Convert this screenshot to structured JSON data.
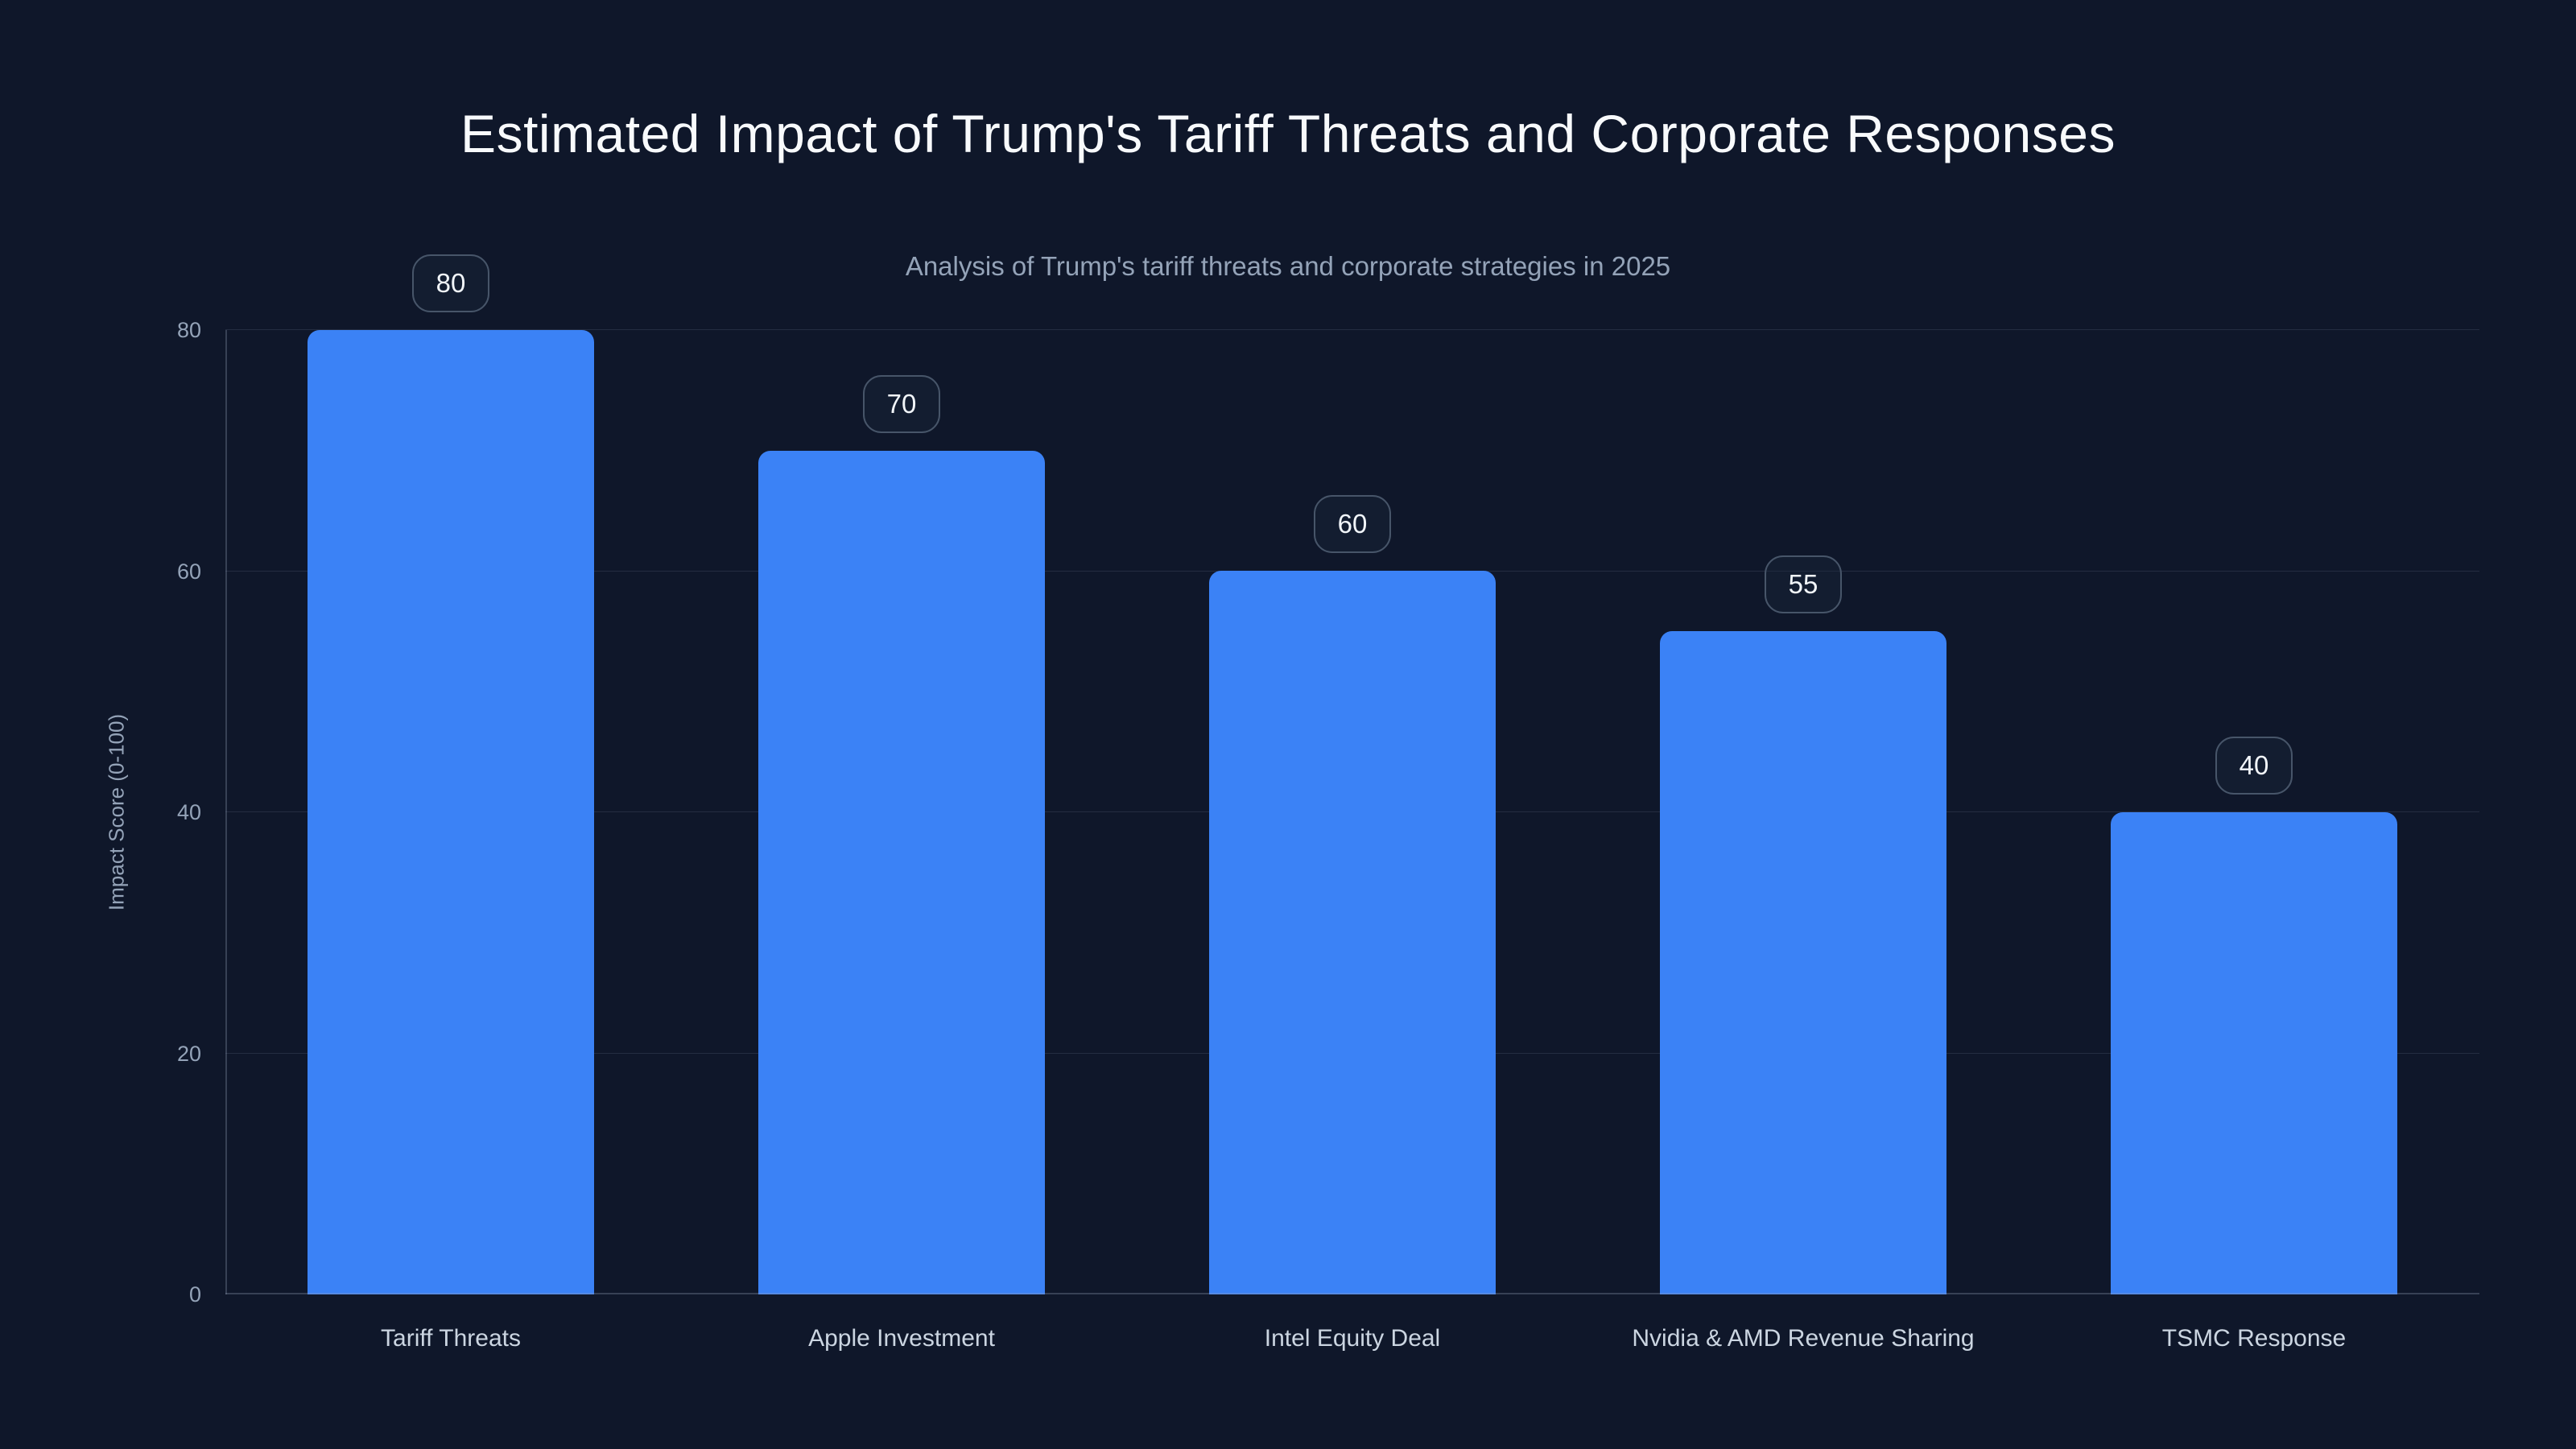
{
  "chart_data": {
    "type": "bar",
    "title": "Estimated Impact of Trump's Tariff Threats and Corporate Responses",
    "subtitle": "Analysis of Trump's tariff threats and corporate strategies in 2025",
    "categories": [
      "Tariff Threats",
      "Apple Investment",
      "Intel Equity Deal",
      "Nvidia & AMD Revenue Sharing",
      "TSMC Response"
    ],
    "values": [
      80,
      70,
      60,
      55,
      40
    ],
    "xlabel": "",
    "ylabel": "Impact Score (0-100)",
    "yticks": [
      0,
      20,
      40,
      60,
      80
    ],
    "ylim": [
      0,
      80
    ],
    "grid": true,
    "legend": false,
    "bar_labels_shown": true,
    "bar_label_style": "rounded-badge"
  },
  "colors": {
    "background": "#0f172a",
    "bar": "#3b82f6",
    "title": "#f8fafc",
    "subtitle": "#94a3b8",
    "axis_text": "#94a3b8",
    "category_text": "#cbd5e1",
    "gridline": "rgba(148,163,184,0.16)",
    "axis_line": "rgba(148,163,184,0.3)",
    "badge_border": "#475569",
    "badge_text": "#f1f5f9"
  }
}
